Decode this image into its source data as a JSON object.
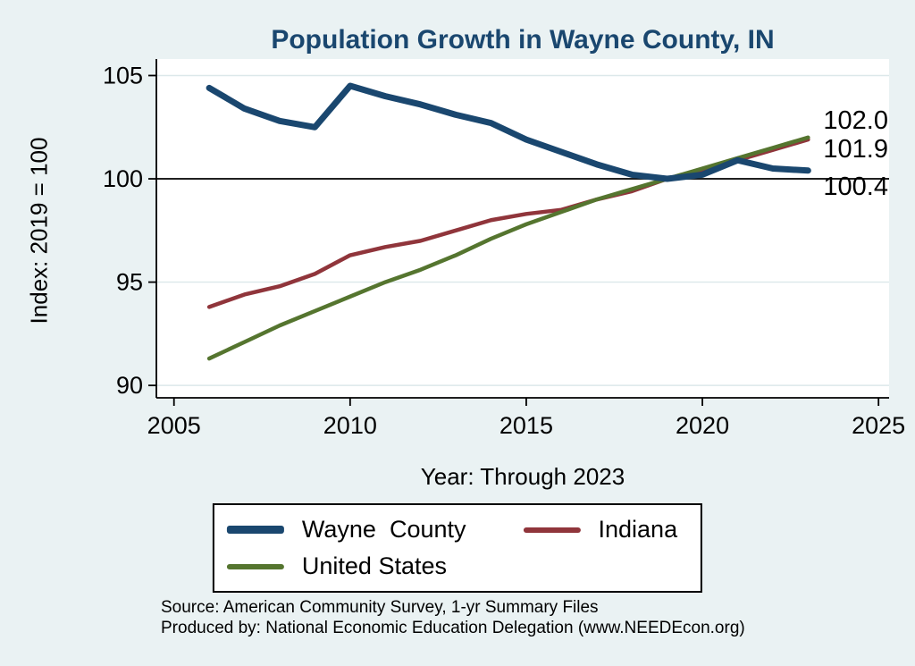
{
  "chart_data": {
    "type": "line",
    "title": "Population Growth in Wayne County, IN",
    "xlabel": "Year: Through 2023",
    "ylabel": "Index: 2019 = 100",
    "x": [
      2006,
      2007,
      2008,
      2009,
      2010,
      2011,
      2012,
      2013,
      2014,
      2015,
      2016,
      2017,
      2018,
      2019,
      2020,
      2021,
      2022,
      2023
    ],
    "series": [
      {
        "name": "Wayne  County",
        "color": "#1A476F",
        "width": 7,
        "values": [
          104.4,
          103.4,
          102.8,
          102.5,
          104.5,
          104.0,
          103.6,
          103.1,
          102.7,
          101.9,
          101.3,
          100.7,
          100.2,
          100.0,
          100.2,
          100.9,
          100.5,
          100.4
        ]
      },
      {
        "name": "Indiana",
        "color": "#90353B",
        "width": 4.5,
        "values": [
          93.8,
          94.4,
          94.8,
          95.4,
          96.3,
          96.7,
          97.0,
          97.5,
          98.0,
          98.3,
          98.5,
          99.0,
          99.4,
          100.0,
          100.4,
          100.9,
          101.4,
          101.9
        ]
      },
      {
        "name": "United States",
        "color": "#55752F",
        "width": 4.5,
        "values": [
          91.3,
          92.1,
          92.9,
          93.6,
          94.3,
          95.0,
          95.6,
          96.3,
          97.1,
          97.8,
          98.4,
          99.0,
          99.5,
          100.0,
          100.5,
          101.0,
          101.5,
          102.0
        ]
      }
    ],
    "xticks": [
      2005,
      2010,
      2015,
      2020,
      2025
    ],
    "yticks": [
      90,
      95,
      100,
      105
    ],
    "xlim": [
      2004.5,
      2025.3
    ],
    "ylim": [
      89.4,
      105.8
    ],
    "ref_line": 100,
    "grid": true,
    "legend_position": "bottom"
  },
  "annotations": [
    {
      "text": "102.0"
    },
    {
      "text": "101.9"
    },
    {
      "text": "100.4"
    }
  ],
  "notes": {
    "line1": "Source: American Community Survey, 1-yr Summary Files",
    "line2": "Produced by: National Economic Education Delegation (www.NEEDEcon.org)"
  },
  "colors": {
    "background": "#EAF2F3",
    "title": "#1A476F",
    "reference_line": "#000000"
  }
}
